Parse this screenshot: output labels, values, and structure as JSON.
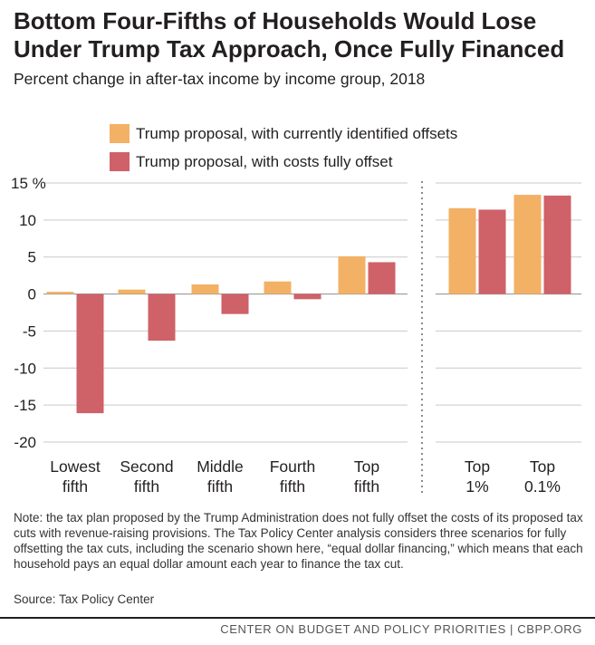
{
  "title": "Bottom Four-Fifths of Households Would Lose Under Trump Tax Approach, Once Fully Financed",
  "subtitle": "Percent change in after-tax income by income group, 2018",
  "chart_data": {
    "type": "bar",
    "title": "Bottom Four-Fifths of Households Would Lose Under Trump Tax Approach, Once Fully Financed",
    "subtitle": "Percent change in after-tax income by income group, 2018",
    "xlabel": "",
    "ylabel": "",
    "ylim": [
      -20,
      15
    ],
    "y_ticks": [
      "15 %",
      "10",
      "5",
      "0",
      "-5",
      "-10",
      "-15",
      "-20"
    ],
    "y_tick_values": [
      15,
      10,
      5,
      0,
      -5,
      -10,
      -15,
      -20
    ],
    "grid": true,
    "legend_position": "top-center",
    "categories": [
      [
        "Lowest",
        "fifth"
      ],
      [
        "Second",
        "fifth"
      ],
      [
        "Middle",
        "fifth"
      ],
      [
        "Fourth",
        "fifth"
      ],
      [
        "Top",
        "fifth"
      ],
      [
        "Top",
        "1%"
      ],
      [
        "Top",
        "0.1%"
      ]
    ],
    "panel_break_after": 4,
    "series": [
      {
        "name": "Trump proposal, with currently identified offsets",
        "color": "#f2b165",
        "values": [
          0.3,
          0.6,
          1.3,
          1.7,
          5.1,
          11.6,
          13.4
        ]
      },
      {
        "name": "Trump proposal, with costs fully offset",
        "color": "#cf6169",
        "values": [
          -16.1,
          -6.3,
          -2.7,
          -0.7,
          4.3,
          11.4,
          13.3
        ]
      }
    ]
  },
  "note": "Note:  the tax plan proposed by the Trump Administration does not fully offset the costs of its proposed tax cuts with revenue-raising provisions. The Tax Policy Center analysis considers three scenarios for fully offsetting the tax cuts, including the scenario shown here, “equal dollar financing,” which means that each household pays an equal dollar amount each year to finance the tax cut.",
  "source": "Source: Tax Policy Center",
  "footer": "CENTER ON BUDGET AND POLICY PRIORITIES | CBPP.ORG"
}
